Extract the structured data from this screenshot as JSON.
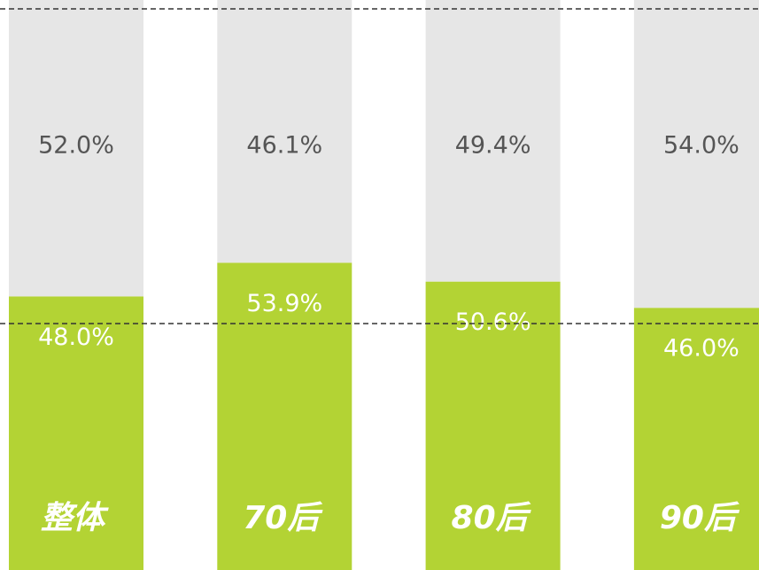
{
  "chart_data": {
    "type": "stacked_bar",
    "categories": [
      "整体",
      "70后",
      "80后",
      "90后"
    ],
    "series": [
      {
        "color": "#b3d334",
        "values": [
          48.0,
          53.9,
          50.6,
          46.0
        ],
        "value_labels": [
          "48.0%",
          "53.9%",
          "50.6%",
          "46.0%"
        ]
      },
      {
        "color": "#e6e6e6",
        "values": [
          52.0,
          46.1,
          49.4,
          54.0
        ],
        "value_labels": [
          "52.0%",
          "46.1%",
          "49.4%",
          "54.0%"
        ]
      }
    ]
  }
}
